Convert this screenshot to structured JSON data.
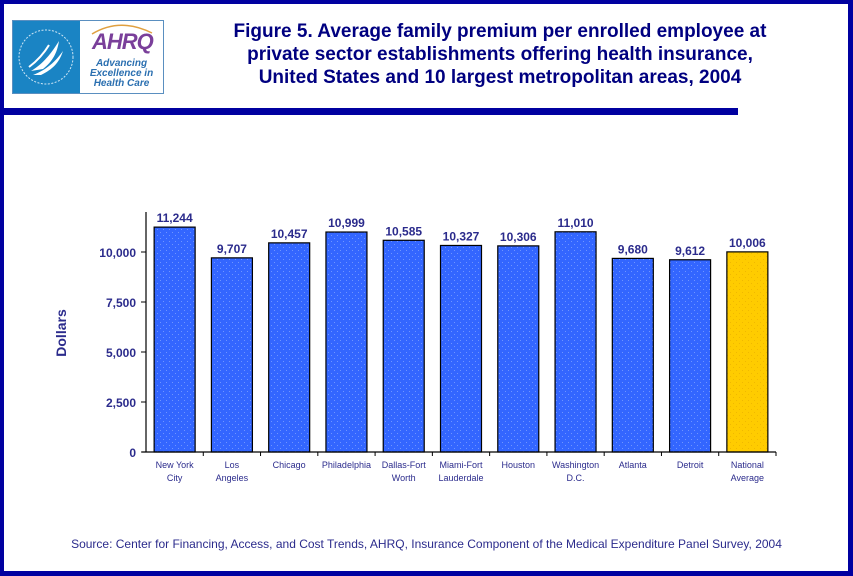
{
  "header": {
    "logo": {
      "hhs_icon": "hhs-eagle-seal-icon",
      "ahrq_wordmark": "AHRQ",
      "ahrq_tagline": [
        "Advancing",
        "Excellence in",
        "Health Care"
      ]
    },
    "title_lines": [
      "Figure 5. Average family premium per enrolled employee at",
      "private sector establishments offering health insurance,",
      "United States and 10 largest metropolitan areas, 2004"
    ]
  },
  "colors": {
    "frame": "#0000a0",
    "title": "#000080",
    "bar": "#3366ff",
    "bar_highlight": "#ffcc00",
    "axis_text": "#2b2b8c"
  },
  "chart_data": {
    "type": "bar",
    "title": "Figure 5. Average family premium per enrolled employee at private sector establishments offering health insurance, United States and 10 largest metropolitan areas, 2004",
    "xlabel": "",
    "ylabel": "Dollars",
    "ylim": [
      0,
      12000
    ],
    "yticks": [
      0,
      2500,
      5000,
      7500,
      10000
    ],
    "ytick_labels": [
      "0",
      "2,500",
      "5,000",
      "7,500",
      "10,000"
    ],
    "grid": false,
    "legend": null,
    "categories": [
      [
        "New York",
        "City"
      ],
      [
        "Los",
        "Angeles"
      ],
      [
        "Chicago"
      ],
      [
        "Philadelphia"
      ],
      [
        "Dallas-Fort",
        "Worth"
      ],
      [
        "Miami-Fort",
        "Lauderdale"
      ],
      [
        "Houston"
      ],
      [
        "Washington",
        "D.C."
      ],
      [
        "Atlanta"
      ],
      [
        "Detroit"
      ],
      [
        "National",
        "Average"
      ]
    ],
    "values": [
      11244,
      9707,
      10457,
      10999,
      10585,
      10327,
      10306,
      11010,
      9680,
      9612,
      10006
    ],
    "data_labels": [
      "11,244",
      "9,707",
      "10,457",
      "10,999",
      "10,585",
      "10,327",
      "10,306",
      "11,010",
      "9,680",
      "9,612",
      "10,006"
    ],
    "highlight_index": 10
  },
  "footer": {
    "source": "Source: Center for Financing, Access, and Cost Trends, AHRQ, Insurance Component of the Medical Expenditure Panel Survey, 2004"
  }
}
